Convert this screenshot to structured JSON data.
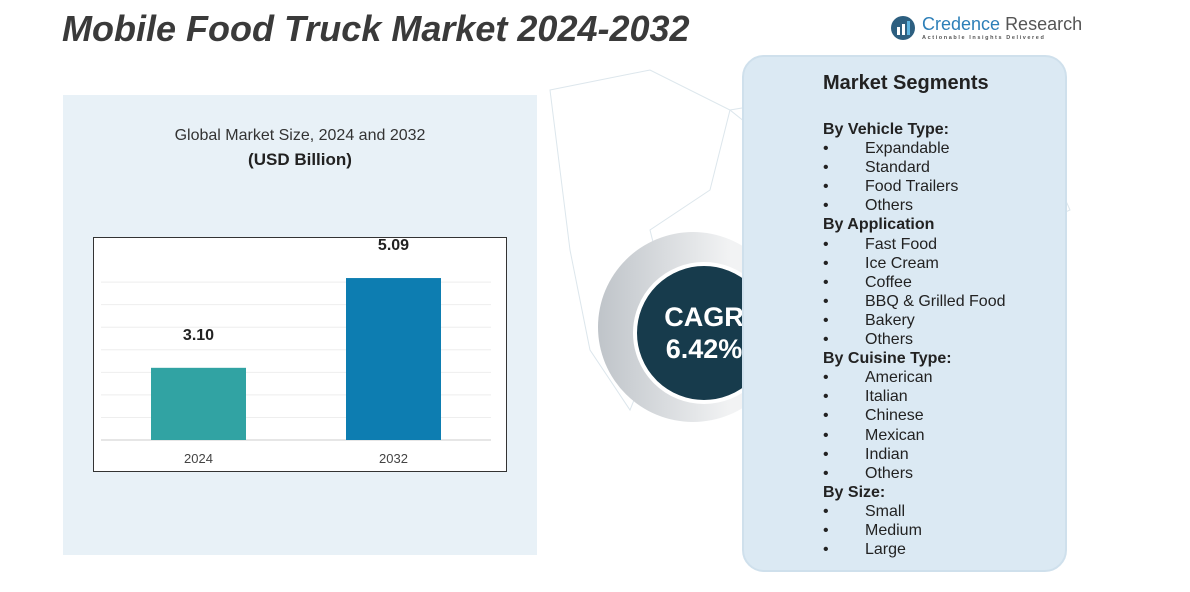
{
  "title": "Mobile Food Truck Market 2024-2032",
  "logo": {
    "name1": "Credence",
    "name2": "Research",
    "tagline": "Actionable Insights Delivered"
  },
  "chart_data": {
    "type": "bar",
    "title": "Global Market Size, 2024 and 2032",
    "ylabel": "(USD Billion)",
    "categories": [
      "2024",
      "2032"
    ],
    "values": [
      3.1,
      5.09
    ],
    "value_labels": [
      "3.10",
      "5.09"
    ],
    "colors": [
      "#31a3a3",
      "#0d7db1"
    ],
    "ylim": [
      1.5,
      6
    ],
    "grid": true
  },
  "cagr": {
    "label": "CAGR",
    "value": "6.42%"
  },
  "segments": {
    "title": "Market Segments",
    "groups": [
      {
        "heading": "By Vehicle Type:",
        "items": [
          "Expandable",
          "Standard",
          "Food Trailers",
          "Others"
        ]
      },
      {
        "heading": "By Application",
        "items": [
          "Fast Food",
          "Ice Cream",
          "Coffee",
          "BBQ & Grilled Food",
          "Bakery",
          "Others"
        ]
      },
      {
        "heading": "By Cuisine Type:",
        "items": [
          "American",
          "Italian",
          "Chinese",
          "Mexican",
          "Indian",
          "Others"
        ]
      },
      {
        "heading": "By Size:",
        "items": [
          "Small",
          "Medium",
          "Large"
        ]
      }
    ]
  }
}
